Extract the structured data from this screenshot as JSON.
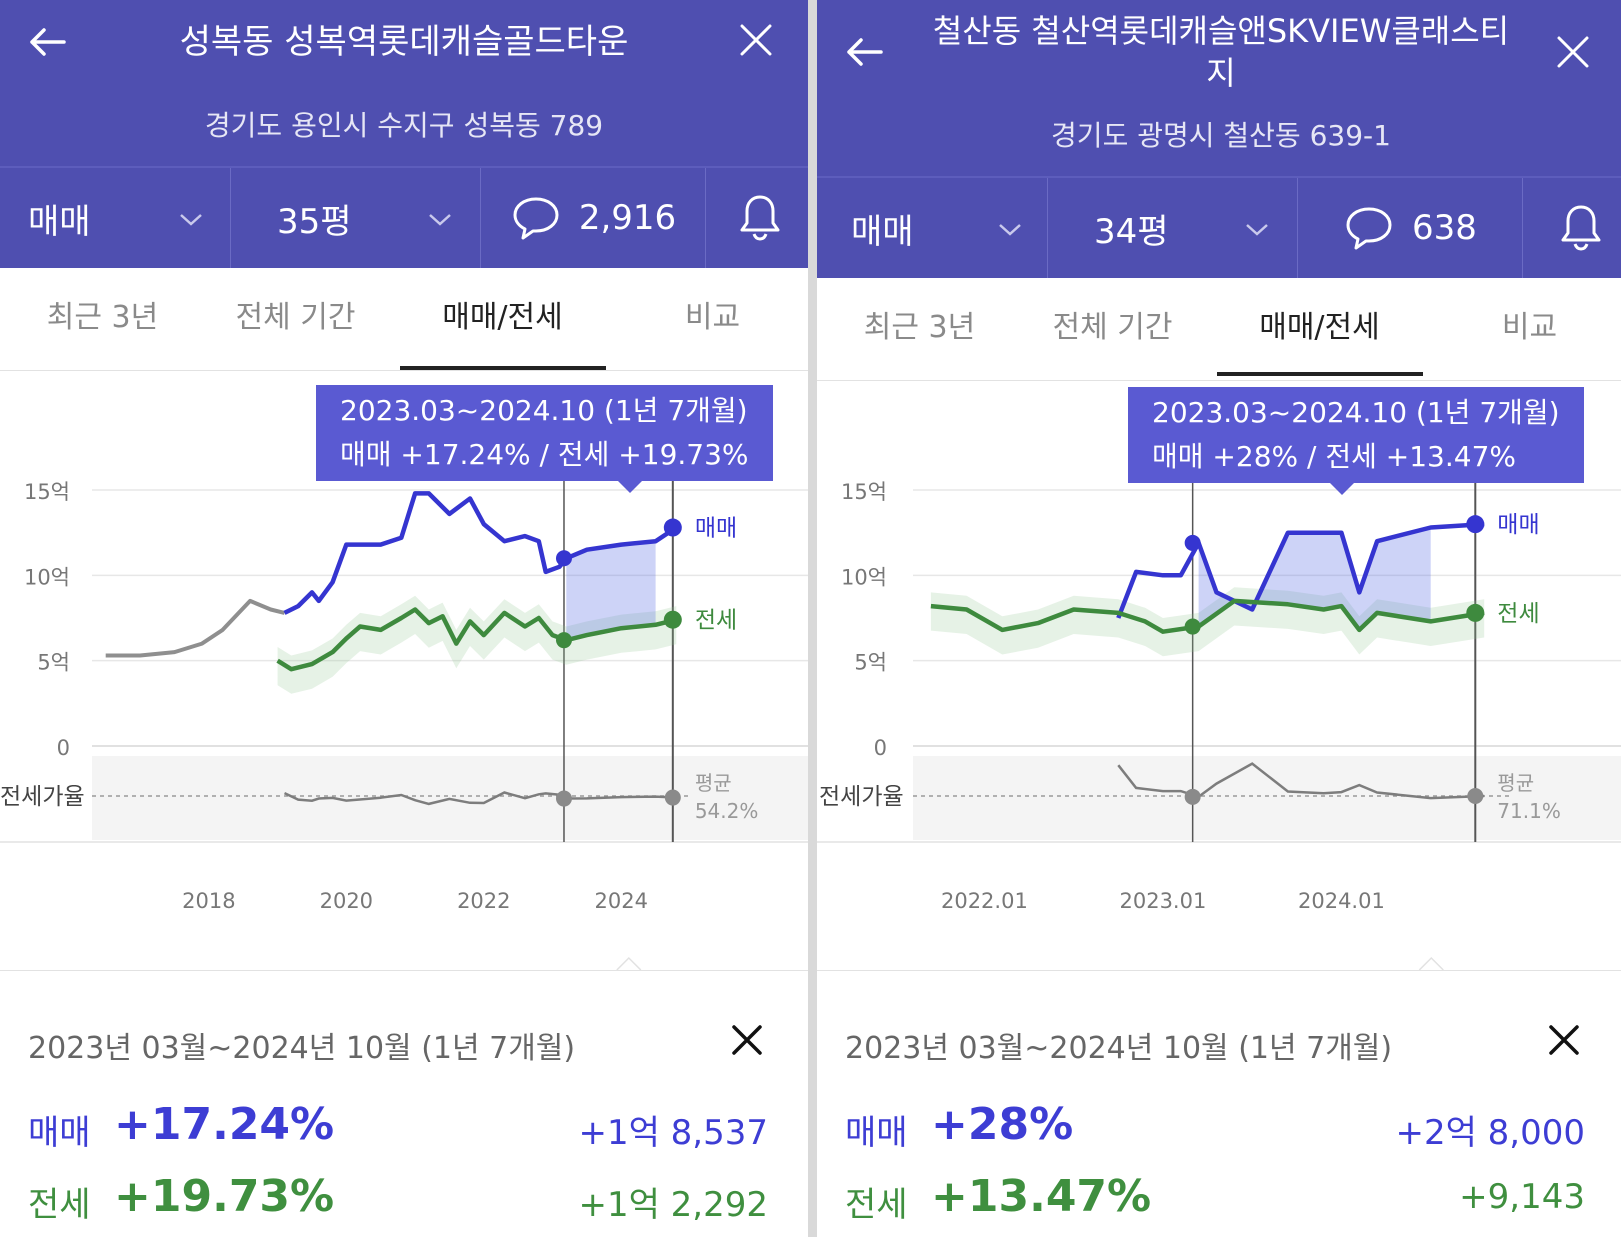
{
  "panels": [
    {
      "title_lines": [
        "성복동 성복역롯데캐슬골드타운"
      ],
      "address": "경기도 용인시 수지구 성복동 789",
      "trade_type": "매매",
      "size": "35평",
      "comment_count": "2,916",
      "tabs": [
        "최근 3년",
        "전체 기간",
        "매매/전세",
        "비교"
      ],
      "active_tab": "매매/전세",
      "tooltip_period": "2023.03~2024.10 (1년 7개월)",
      "tooltip_change": "매매 +17.24%  /  전세 +19.73%",
      "summary_period": "2023년 03월~2024년 10월 (1년 7개월)",
      "summary_rows": [
        {
          "label": "매매",
          "pct": "+17.24%",
          "amount": "+1억 8,537"
        },
        {
          "label": "전세",
          "pct": "+19.73%",
          "amount": "+1억 2,292"
        }
      ],
      "chart_data": {
        "type": "line",
        "y_tick_labels": [
          "15억",
          "10억",
          "5억",
          "0"
        ],
        "ylim": [
          0,
          15
        ],
        "x_tick_labels": [
          "2018",
          "2020",
          "2022",
          "2024"
        ],
        "series_labels": [
          "매매",
          "전세"
        ],
        "ratio_label": "전세가율",
        "avg_label": "평균",
        "avg_value": "54.2%",
        "selection": [
          "2023.03",
          "2024.10"
        ],
        "series": [
          {
            "name": "매매",
            "x": [
              2016.5,
              2017.0,
              2017.5,
              2017.9,
              2018.2,
              2018.6,
              2018.9,
              2019.1,
              2019.3,
              2019.5,
              2019.6,
              2019.8,
              2020.0,
              2020.5,
              2020.8,
              2021.0,
              2021.2,
              2021.5,
              2021.8,
              2022.0,
              2022.3,
              2022.6,
              2022.8,
              2022.9,
              2023.1,
              2023.2,
              2023.5,
              2024.0,
              2024.5,
              2024.8
            ],
            "values": [
              5.3,
              5.3,
              5.5,
              6.0,
              6.8,
              8.5,
              8.0,
              7.8,
              8.2,
              9.0,
              8.5,
              9.6,
              11.8,
              11.8,
              12.2,
              14.8,
              14.8,
              13.6,
              14.5,
              13.0,
              12.0,
              12.3,
              12.0,
              10.2,
              10.5,
              11.0,
              11.5,
              11.8,
              12.0,
              12.8
            ]
          },
          {
            "name": "전세",
            "x": [
              2019.0,
              2019.2,
              2019.5,
              2019.8,
              2020.0,
              2020.2,
              2020.5,
              2020.8,
              2021.0,
              2021.2,
              2021.4,
              2021.6,
              2021.8,
              2022.0,
              2022.3,
              2022.6,
              2022.8,
              2023.0,
              2023.2,
              2023.5,
              2024.0,
              2024.5,
              2024.8
            ],
            "values": [
              5.0,
              4.5,
              4.8,
              5.5,
              6.3,
              7.0,
              6.8,
              7.5,
              8.0,
              7.2,
              7.6,
              6.0,
              7.3,
              6.5,
              7.8,
              7.0,
              7.5,
              6.5,
              6.2,
              6.5,
              6.9,
              7.1,
              7.4
            ]
          }
        ]
      }
    },
    {
      "title_lines": [
        "철산동 철산역롯데캐슬앤SKVIEW클래스티",
        "지"
      ],
      "address": "경기도 광명시 철산동 639-1",
      "trade_type": "매매",
      "size": "34평",
      "comment_count": "638",
      "tabs": [
        "최근 3년",
        "전체 기간",
        "매매/전세",
        "비교"
      ],
      "active_tab": "매매/전세",
      "tooltip_period": "2023.03~2024.10 (1년 7개월)",
      "tooltip_change": "매매 +28%  /  전세 +13.47%",
      "summary_period": "2023년 03월~2024년 10월 (1년 7개월)",
      "summary_rows": [
        {
          "label": "매매",
          "pct": "+28%",
          "amount": "+2억 8,000"
        },
        {
          "label": "전세",
          "pct": "+13.47%",
          "amount": "+9,143"
        }
      ],
      "chart_data": {
        "type": "line",
        "y_tick_labels": [
          "15억",
          "10억",
          "5억",
          "0"
        ],
        "ylim": [
          0,
          15
        ],
        "x_tick_labels": [
          "2022.01",
          "2023.01",
          "2024.01"
        ],
        "series_labels": [
          "매매",
          "전세"
        ],
        "ratio_label": "전세가율",
        "avg_label": "평균",
        "avg_value": "71.1%",
        "selection": [
          "2023.03",
          "2024.10"
        ],
        "series": [
          {
            "name": "매매",
            "x": [
              2022.75,
              2022.85,
              2023.0,
              2023.1,
              2023.2,
              2023.3,
              2023.5,
              2023.7,
              2023.9,
              2024.0,
              2024.1,
              2024.2,
              2024.5,
              2024.8
            ],
            "values": [
              7.5,
              10.2,
              10.0,
              10.0,
              11.9,
              9.0,
              8.0,
              12.5,
              12.5,
              12.5,
              9.0,
              12.0,
              12.8,
              13.0
            ]
          },
          {
            "name": "전세",
            "x": [
              2021.7,
              2021.9,
              2022.1,
              2022.3,
              2022.5,
              2022.75,
              2022.9,
              2023.0,
              2023.2,
              2023.4,
              2023.7,
              2023.9,
              2024.0,
              2024.1,
              2024.2,
              2024.5,
              2024.8
            ],
            "values": [
              8.2,
              8.0,
              6.8,
              7.2,
              8.0,
              7.8,
              7.3,
              6.7,
              7.0,
              8.5,
              8.3,
              8.0,
              8.2,
              6.8,
              7.8,
              7.3,
              7.8
            ]
          }
        ]
      }
    }
  ]
}
